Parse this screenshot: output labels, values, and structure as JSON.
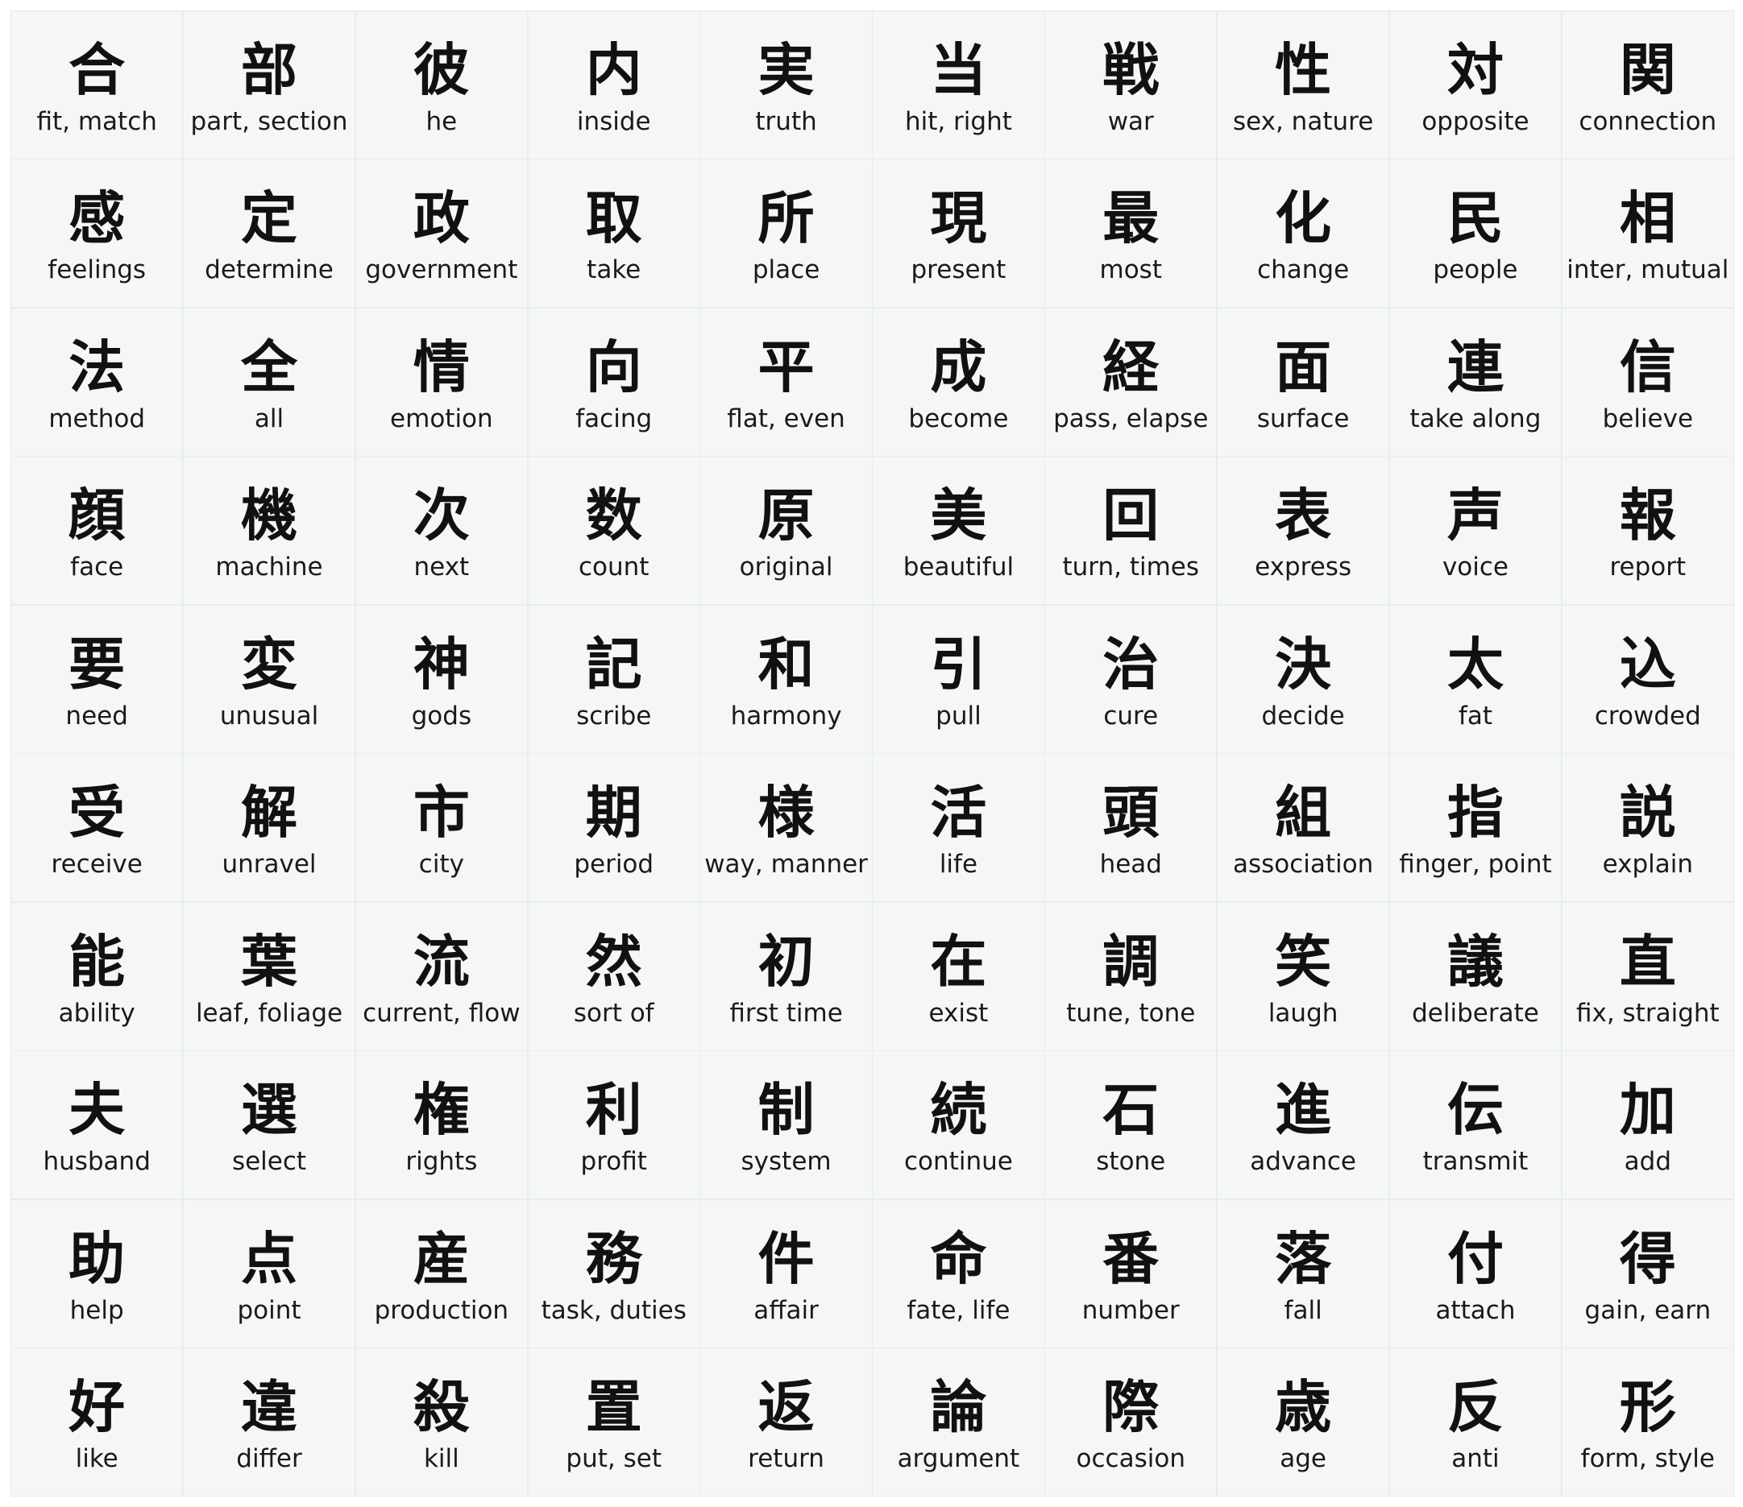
{
  "cards": [
    {
      "kanji": "合",
      "meaning": "fit, match"
    },
    {
      "kanji": "部",
      "meaning": "part, section"
    },
    {
      "kanji": "彼",
      "meaning": "he"
    },
    {
      "kanji": "内",
      "meaning": "inside"
    },
    {
      "kanji": "実",
      "meaning": "truth"
    },
    {
      "kanji": "当",
      "meaning": "hit, right"
    },
    {
      "kanji": "戦",
      "meaning": "war"
    },
    {
      "kanji": "性",
      "meaning": "sex, nature"
    },
    {
      "kanji": "対",
      "meaning": "opposite"
    },
    {
      "kanji": "関",
      "meaning": "connection"
    },
    {
      "kanji": "感",
      "meaning": "feelings"
    },
    {
      "kanji": "定",
      "meaning": "determine"
    },
    {
      "kanji": "政",
      "meaning": "government"
    },
    {
      "kanji": "取",
      "meaning": "take"
    },
    {
      "kanji": "所",
      "meaning": "place"
    },
    {
      "kanji": "現",
      "meaning": "present"
    },
    {
      "kanji": "最",
      "meaning": "most"
    },
    {
      "kanji": "化",
      "meaning": "change"
    },
    {
      "kanji": "民",
      "meaning": "people"
    },
    {
      "kanji": "相",
      "meaning": "inter, mutual"
    },
    {
      "kanji": "法",
      "meaning": "method"
    },
    {
      "kanji": "全",
      "meaning": "all"
    },
    {
      "kanji": "情",
      "meaning": "emotion"
    },
    {
      "kanji": "向",
      "meaning": "facing"
    },
    {
      "kanji": "平",
      "meaning": "flat, even"
    },
    {
      "kanji": "成",
      "meaning": "become"
    },
    {
      "kanji": "経",
      "meaning": "pass, elapse"
    },
    {
      "kanji": "面",
      "meaning": "surface"
    },
    {
      "kanji": "連",
      "meaning": "take along"
    },
    {
      "kanji": "信",
      "meaning": "believe"
    },
    {
      "kanji": "顔",
      "meaning": "face"
    },
    {
      "kanji": "機",
      "meaning": "machine"
    },
    {
      "kanji": "次",
      "meaning": "next"
    },
    {
      "kanji": "数",
      "meaning": "count"
    },
    {
      "kanji": "原",
      "meaning": "original"
    },
    {
      "kanji": "美",
      "meaning": "beautiful"
    },
    {
      "kanji": "回",
      "meaning": "turn, times"
    },
    {
      "kanji": "表",
      "meaning": "express"
    },
    {
      "kanji": "声",
      "meaning": "voice"
    },
    {
      "kanji": "報",
      "meaning": "report"
    },
    {
      "kanji": "要",
      "meaning": "need"
    },
    {
      "kanji": "変",
      "meaning": "unusual"
    },
    {
      "kanji": "神",
      "meaning": "gods"
    },
    {
      "kanji": "記",
      "meaning": "scribe"
    },
    {
      "kanji": "和",
      "meaning": "harmony"
    },
    {
      "kanji": "引",
      "meaning": "pull"
    },
    {
      "kanji": "治",
      "meaning": "cure"
    },
    {
      "kanji": "決",
      "meaning": "decide"
    },
    {
      "kanji": "太",
      "meaning": "fat"
    },
    {
      "kanji": "込",
      "meaning": "crowded"
    },
    {
      "kanji": "受",
      "meaning": "receive"
    },
    {
      "kanji": "解",
      "meaning": "unravel"
    },
    {
      "kanji": "市",
      "meaning": "city"
    },
    {
      "kanji": "期",
      "meaning": "period"
    },
    {
      "kanji": "様",
      "meaning": "way, manner"
    },
    {
      "kanji": "活",
      "meaning": "life"
    },
    {
      "kanji": "頭",
      "meaning": "head"
    },
    {
      "kanji": "組",
      "meaning": "association"
    },
    {
      "kanji": "指",
      "meaning": "finger, point"
    },
    {
      "kanji": "説",
      "meaning": "explain"
    },
    {
      "kanji": "能",
      "meaning": "ability"
    },
    {
      "kanji": "葉",
      "meaning": "leaf, foliage"
    },
    {
      "kanji": "流",
      "meaning": "current, flow"
    },
    {
      "kanji": "然",
      "meaning": "sort of"
    },
    {
      "kanji": "初",
      "meaning": "first time"
    },
    {
      "kanji": "在",
      "meaning": "exist"
    },
    {
      "kanji": "調",
      "meaning": "tune, tone"
    },
    {
      "kanji": "笑",
      "meaning": "laugh"
    },
    {
      "kanji": "議",
      "meaning": "deliberate"
    },
    {
      "kanji": "直",
      "meaning": "fix, straight"
    },
    {
      "kanji": "夫",
      "meaning": "husband"
    },
    {
      "kanji": "選",
      "meaning": "select"
    },
    {
      "kanji": "権",
      "meaning": "rights"
    },
    {
      "kanji": "利",
      "meaning": "profit"
    },
    {
      "kanji": "制",
      "meaning": "system"
    },
    {
      "kanji": "続",
      "meaning": "continue"
    },
    {
      "kanji": "石",
      "meaning": "stone"
    },
    {
      "kanji": "進",
      "meaning": "advance"
    },
    {
      "kanji": "伝",
      "meaning": "transmit"
    },
    {
      "kanji": "加",
      "meaning": "add"
    },
    {
      "kanji": "助",
      "meaning": "help"
    },
    {
      "kanji": "点",
      "meaning": "point"
    },
    {
      "kanji": "産",
      "meaning": "production"
    },
    {
      "kanji": "務",
      "meaning": "task, duties"
    },
    {
      "kanji": "件",
      "meaning": "affair"
    },
    {
      "kanji": "命",
      "meaning": "fate, life"
    },
    {
      "kanji": "番",
      "meaning": "number"
    },
    {
      "kanji": "落",
      "meaning": "fall"
    },
    {
      "kanji": "付",
      "meaning": "attach"
    },
    {
      "kanji": "得",
      "meaning": "gain, earn"
    },
    {
      "kanji": "好",
      "meaning": "like"
    },
    {
      "kanji": "違",
      "meaning": "differ"
    },
    {
      "kanji": "殺",
      "meaning": "kill"
    },
    {
      "kanji": "置",
      "meaning": "put, set"
    },
    {
      "kanji": "返",
      "meaning": "return"
    },
    {
      "kanji": "論",
      "meaning": "argument"
    },
    {
      "kanji": "際",
      "meaning": "occasion"
    },
    {
      "kanji": "歳",
      "meaning": "age"
    },
    {
      "kanji": "反",
      "meaning": "anti"
    },
    {
      "kanji": "形",
      "meaning": "form, style"
    }
  ]
}
